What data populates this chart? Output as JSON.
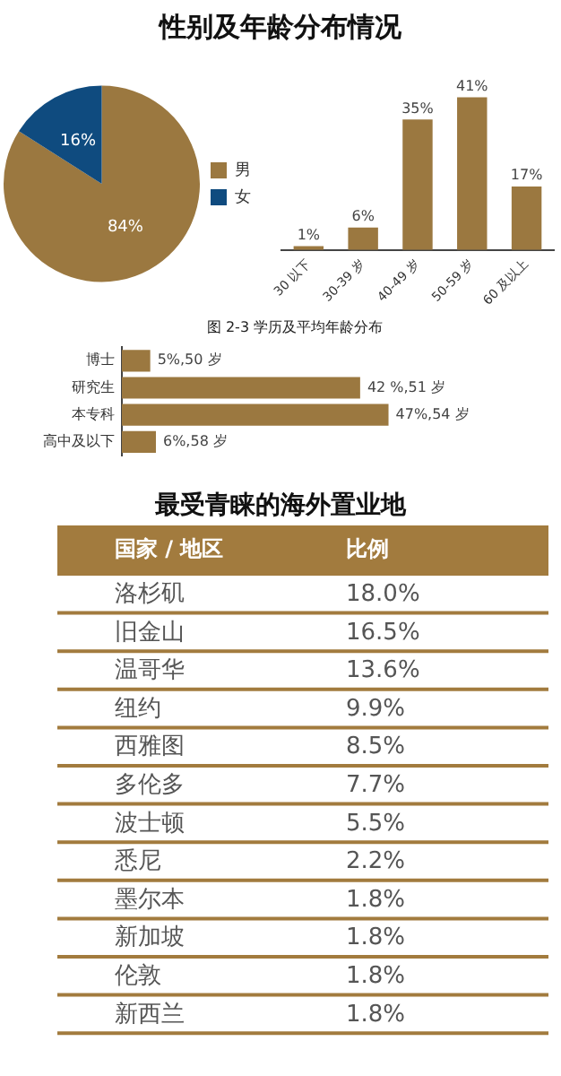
{
  "chart_data": [
    {
      "type": "pie",
      "title": "性别及年龄分布情况",
      "categories": [
        "男",
        "女"
      ],
      "values": [
        84,
        16
      ],
      "colors": [
        "#9b7840",
        "#0f4b7f"
      ],
      "value_labels": [
        "84%",
        "16%"
      ],
      "legend": "right"
    },
    {
      "type": "bar",
      "categories": [
        "30 以下",
        "30-39 岁",
        "40-49 岁",
        "50-59 岁",
        "60 及以上"
      ],
      "values": [
        1,
        6,
        35,
        41,
        17
      ],
      "color": "#9b7840",
      "value_labels": [
        "1%",
        "6%",
        "35%",
        "41%",
        "17%"
      ]
    },
    {
      "type": "bar",
      "orientation": "horizontal",
      "title": "图 2-3 学历及平均年龄分布",
      "categories": [
        "博士",
        "研究生",
        "本专科",
        "高中及以下"
      ],
      "values": [
        5,
        42,
        47,
        6
      ],
      "color": "#9b7840",
      "value_labels": [
        "5%,50 岁",
        "42 %,51 岁",
        "47%,54 岁",
        "6%,58 岁"
      ]
    },
    {
      "type": "other",
      "title": "最受青睐的海外置业地",
      "xlabel": "国家 / 地区",
      "ylabel": "比例",
      "color": "#a27b3e",
      "categories": [
        "洛杉矶",
        "旧金山",
        "温哥华",
        "纽约",
        "西雅图",
        "多伦多",
        "波士顿",
        "悉尼",
        "墨尔本",
        "新加坡",
        "伦敦",
        "新西兰"
      ],
      "value_labels": [
        "18.0%",
        "16.5%",
        "13.6%",
        "9.9%",
        "8.5%",
        "7.7%",
        "5.5%",
        "2.2%",
        "1.8%",
        "1.8%",
        "1.8%",
        "1.8%"
      ]
    }
  ]
}
